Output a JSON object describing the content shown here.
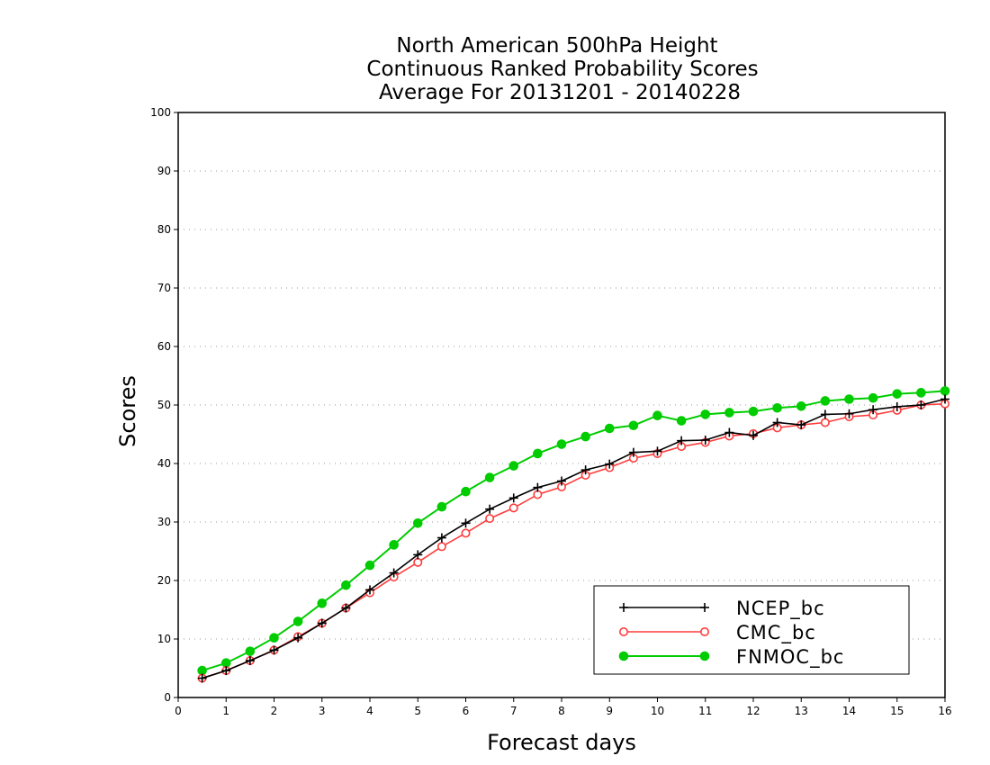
{
  "chart_data": {
    "type": "line",
    "title": [
      "North American 500hPa Height",
      "Continuous Ranked Probability Scores",
      "Average For 20131201 - 20140228"
    ],
    "xlabel": "Forecast days",
    "ylabel": "Scores",
    "xlim": [
      0,
      16
    ],
    "ylim": [
      0,
      100
    ],
    "x_ticks": [
      "0",
      "1",
      "2",
      "3",
      "4",
      "5",
      "6",
      "7",
      "8",
      "9",
      "10",
      "11",
      "12",
      "13",
      "14",
      "15",
      "16"
    ],
    "y_ticks": [
      "0",
      "10",
      "20",
      "30",
      "40",
      "50",
      "60",
      "70",
      "80",
      "90",
      "100"
    ],
    "grid": "horizontal dotted",
    "legend_position": "bottom-right",
    "x": [
      0.5,
      1,
      1.5,
      2,
      2.5,
      3,
      3.5,
      4,
      4.5,
      5,
      5.5,
      6,
      6.5,
      7,
      7.5,
      8,
      8.5,
      9,
      9.5,
      10,
      10.5,
      11,
      11.5,
      12,
      12.5,
      13,
      13.5,
      14,
      14.5,
      15,
      15.5,
      16
    ],
    "series": [
      {
        "name": "NCEP_bc",
        "color": "#000000",
        "marker": "plus",
        "values": [
          3.3,
          4.6,
          6.3,
          8.1,
          10.2,
          12.7,
          15.3,
          18.4,
          21.3,
          24.4,
          27.3,
          29.8,
          32.2,
          34.1,
          35.9,
          37.0,
          38.9,
          39.9,
          41.9,
          42.1,
          43.9,
          44.0,
          45.3,
          44.8,
          47.0,
          46.6,
          48.4,
          48.5,
          49.2,
          49.7,
          50.0,
          51.0
        ]
      },
      {
        "name": "CMC_bc",
        "color": "#ff3c3c",
        "marker": "open-circle",
        "values": [
          3.3,
          4.6,
          6.3,
          8.1,
          10.4,
          12.7,
          15.3,
          17.9,
          20.6,
          23.1,
          25.8,
          28.1,
          30.6,
          32.4,
          34.7,
          36.0,
          38.0,
          39.3,
          40.9,
          41.7,
          42.9,
          43.6,
          44.7,
          45.1,
          46.1,
          46.6,
          47.0,
          48.0,
          48.3,
          49.1,
          50.0,
          50.2
        ]
      },
      {
        "name": "FNMOC_bc",
        "color": "#00cc00",
        "marker": "filled-circle",
        "values": [
          4.6,
          5.9,
          7.9,
          10.2,
          13.0,
          16.1,
          19.2,
          22.6,
          26.1,
          29.8,
          32.6,
          35.2,
          37.6,
          39.6,
          41.7,
          43.3,
          44.6,
          46.0,
          46.5,
          48.2,
          47.3,
          48.4,
          48.7,
          48.9,
          49.5,
          49.8,
          50.7,
          51.0,
          51.2,
          51.9,
          52.1,
          52.4
        ]
      }
    ]
  }
}
